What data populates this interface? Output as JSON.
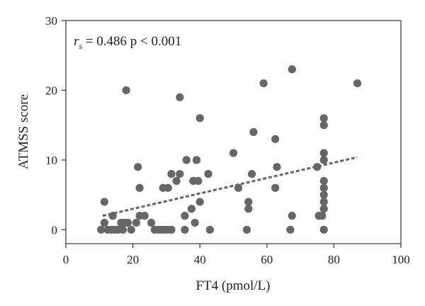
{
  "chart_data": {
    "type": "scatter",
    "title": "",
    "xlabel": "FT4 (pmol/L)",
    "ylabel": "ATMSS score",
    "xlim": [
      0,
      100
    ],
    "ylim": [
      -2,
      30
    ],
    "xticks": [
      0,
      20,
      40,
      60,
      80,
      100
    ],
    "yticks": [
      0,
      10,
      20,
      30
    ],
    "grid": false,
    "legend": "none",
    "annotation": {
      "r_symbol": "r",
      "r_subscript": "s",
      "text": " = 0.486 p < 0.001"
    },
    "marker_color": "#666666",
    "trendline": {
      "style": "dashed",
      "color": "#666666",
      "x": [
        11,
        87
      ],
      "y": [
        2,
        10.4
      ]
    },
    "points": [
      [
        10.5,
        0
      ],
      [
        11.5,
        1
      ],
      [
        11.5,
        4
      ],
      [
        12.5,
        0
      ],
      [
        13.5,
        0
      ],
      [
        14,
        2
      ],
      [
        14.5,
        0
      ],
      [
        15.5,
        0
      ],
      [
        16.5,
        1
      ],
      [
        17,
        0
      ],
      [
        17.5,
        1
      ],
      [
        18,
        20
      ],
      [
        18.5,
        1
      ],
      [
        19.5,
        0
      ],
      [
        21,
        1
      ],
      [
        21.5,
        9
      ],
      [
        22,
        2
      ],
      [
        22,
        6
      ],
      [
        23.5,
        2
      ],
      [
        25.5,
        1
      ],
      [
        26.5,
        0
      ],
      [
        27.5,
        0
      ],
      [
        28.5,
        0
      ],
      [
        29,
        6
      ],
      [
        29.5,
        0
      ],
      [
        30.5,
        6
      ],
      [
        30.5,
        0
      ],
      [
        31.5,
        8
      ],
      [
        31.5,
        0
      ],
      [
        33,
        7
      ],
      [
        34,
        19
      ],
      [
        34,
        8
      ],
      [
        35.5,
        0
      ],
      [
        35.5,
        2
      ],
      [
        36,
        10
      ],
      [
        37.5,
        3
      ],
      [
        38,
        7
      ],
      [
        38.5,
        1
      ],
      [
        39,
        10
      ],
      [
        39.5,
        7
      ],
      [
        40,
        4
      ],
      [
        40,
        16
      ],
      [
        42.5,
        8
      ],
      [
        43,
        0
      ],
      [
        50,
        11
      ],
      [
        51.5,
        6
      ],
      [
        54,
        0
      ],
      [
        54.5,
        4
      ],
      [
        54.5,
        3
      ],
      [
        55.5,
        8
      ],
      [
        56,
        14
      ],
      [
        59,
        21
      ],
      [
        62.5,
        6
      ],
      [
        62.5,
        13
      ],
      [
        63,
        9
      ],
      [
        67,
        0
      ],
      [
        67.5,
        23
      ],
      [
        67.5,
        2
      ],
      [
        75,
        9
      ],
      [
        75.5,
        2
      ],
      [
        76.5,
        2
      ],
      [
        77,
        0
      ],
      [
        77,
        3
      ],
      [
        77,
        4
      ],
      [
        77,
        5
      ],
      [
        77,
        6
      ],
      [
        77,
        7
      ],
      [
        77,
        10
      ],
      [
        77,
        11
      ],
      [
        77,
        15
      ],
      [
        77,
        16
      ],
      [
        87,
        21
      ]
    ]
  }
}
